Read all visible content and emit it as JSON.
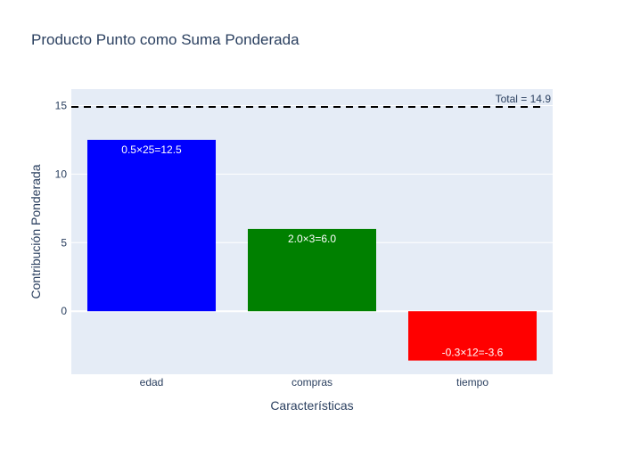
{
  "chart_data": {
    "type": "bar",
    "title": "Producto Punto como Suma Ponderada",
    "xlabel": "Características",
    "ylabel": "Contribución Ponderada",
    "categories": [
      "edad",
      "compras",
      "tiempo"
    ],
    "values": [
      12.5,
      6.0,
      -3.6
    ],
    "bar_labels": [
      "0.5×25=12.5",
      "2.0×3=6.0",
      "-0.3×12=-3.6"
    ],
    "bar_colors": [
      "#0000ff",
      "#008000",
      "#ff0000"
    ],
    "ylim": [
      -4.6,
      16.2
    ],
    "yticks": [
      0,
      5,
      10,
      15
    ],
    "grid": true,
    "reference_line": {
      "value": 14.9,
      "label": "Total = 14.9",
      "style": "dashed",
      "color": "#000000"
    },
    "colors": {
      "plot_bg": "#e5ecf6",
      "grid": "#ffffff",
      "text": "#2a3f5f",
      "label_text": "#ffffff"
    }
  }
}
